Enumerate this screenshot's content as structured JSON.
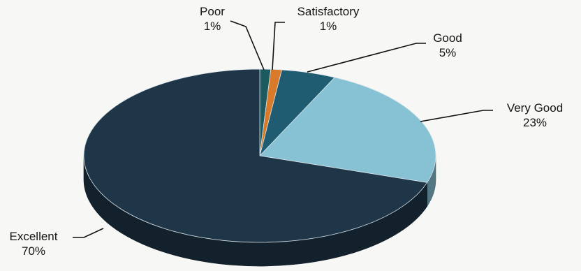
{
  "chart_data": {
    "type": "pie",
    "style": "3d",
    "categories": [
      "Poor",
      "Satisfactory",
      "Good",
      "Very Good",
      "Excellent"
    ],
    "values": [
      1,
      1,
      5,
      23,
      70
    ],
    "unit": "%",
    "data_labels": [
      "1%",
      "1%",
      "5%",
      "23%",
      "70%"
    ],
    "colors": [
      "#1c5a60",
      "#d97a2b",
      "#1f5c72",
      "#86c2d3",
      "#1f3649"
    ],
    "legend": "none",
    "title": ""
  }
}
